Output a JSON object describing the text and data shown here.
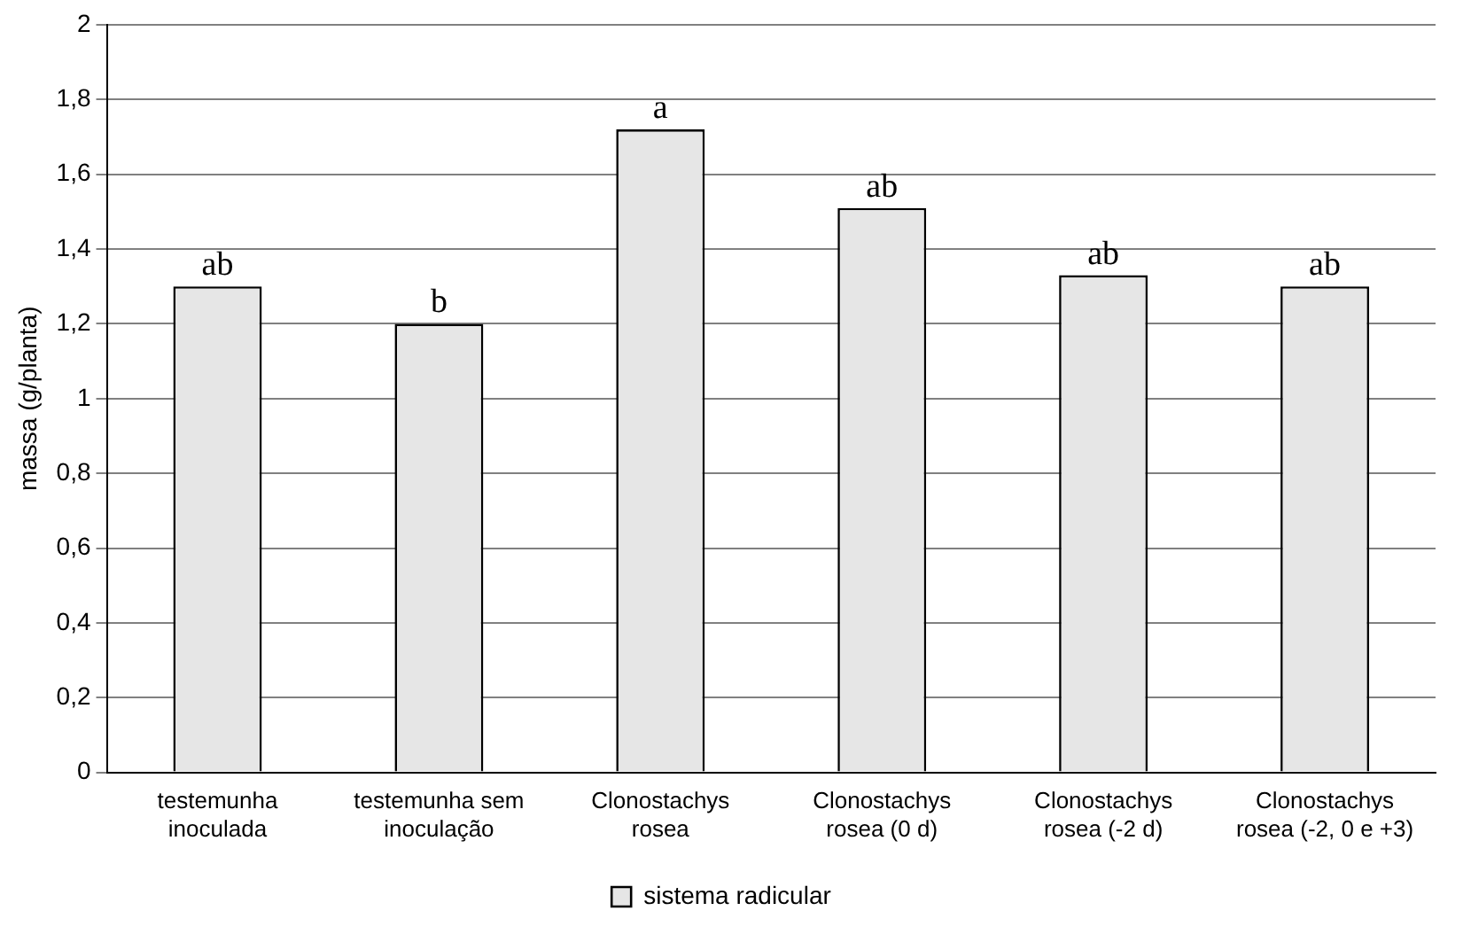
{
  "chart_data": {
    "type": "bar",
    "ylabel": "massa (g/planta)",
    "categories": [
      "testemunha inoculada",
      "testemunha sem inoculação",
      "Clonostachys rosea",
      "Clonostachys rosea (0 d)",
      "Clonostachys rosea (-2 d)",
      "Clonostachys rosea (-2, 0 e +3)"
    ],
    "series": [
      {
        "name": "sistema radicular",
        "color": "#e6e6e6",
        "values": [
          1.3,
          1.2,
          1.72,
          1.51,
          1.33,
          1.3
        ]
      }
    ],
    "ylim": [
      0,
      2
    ],
    "yticks": [
      {
        "value": 0,
        "label": "0"
      },
      {
        "value": 0.2,
        "label": "0,2"
      },
      {
        "value": 0.4,
        "label": "0,4"
      },
      {
        "value": 0.6,
        "label": "0,6"
      },
      {
        "value": 0.8,
        "label": "0,8"
      },
      {
        "value": 1,
        "label": "1"
      },
      {
        "value": 1.2,
        "label": "1,2"
      },
      {
        "value": 1.4,
        "label": "1,4"
      },
      {
        "value": 1.6,
        "label": "1,6"
      },
      {
        "value": 1.8,
        "label": "1,8"
      },
      {
        "value": 2,
        "label": "2"
      }
    ],
    "grid": "y",
    "legend": "bottom",
    "annotations": [
      {
        "text": "ab",
        "x": "testemunha inoculada",
        "y": 1.3
      },
      {
        "text": "b",
        "x": "testemunha sem inoculação",
        "y": 1.2
      },
      {
        "text": "a",
        "x": "Clonostachys rosea",
        "y": 1.72
      },
      {
        "text": "ab",
        "x": "Clonostachys rosea (0 d)",
        "y": 1.51
      },
      {
        "text": "ab",
        "x": "Clonostachys rosea (-2 d)",
        "y": 1.33
      },
      {
        "text": "ab",
        "x": "Clonostachys rosea (-2, 0 e +3)",
        "y": 1.3
      }
    ]
  }
}
